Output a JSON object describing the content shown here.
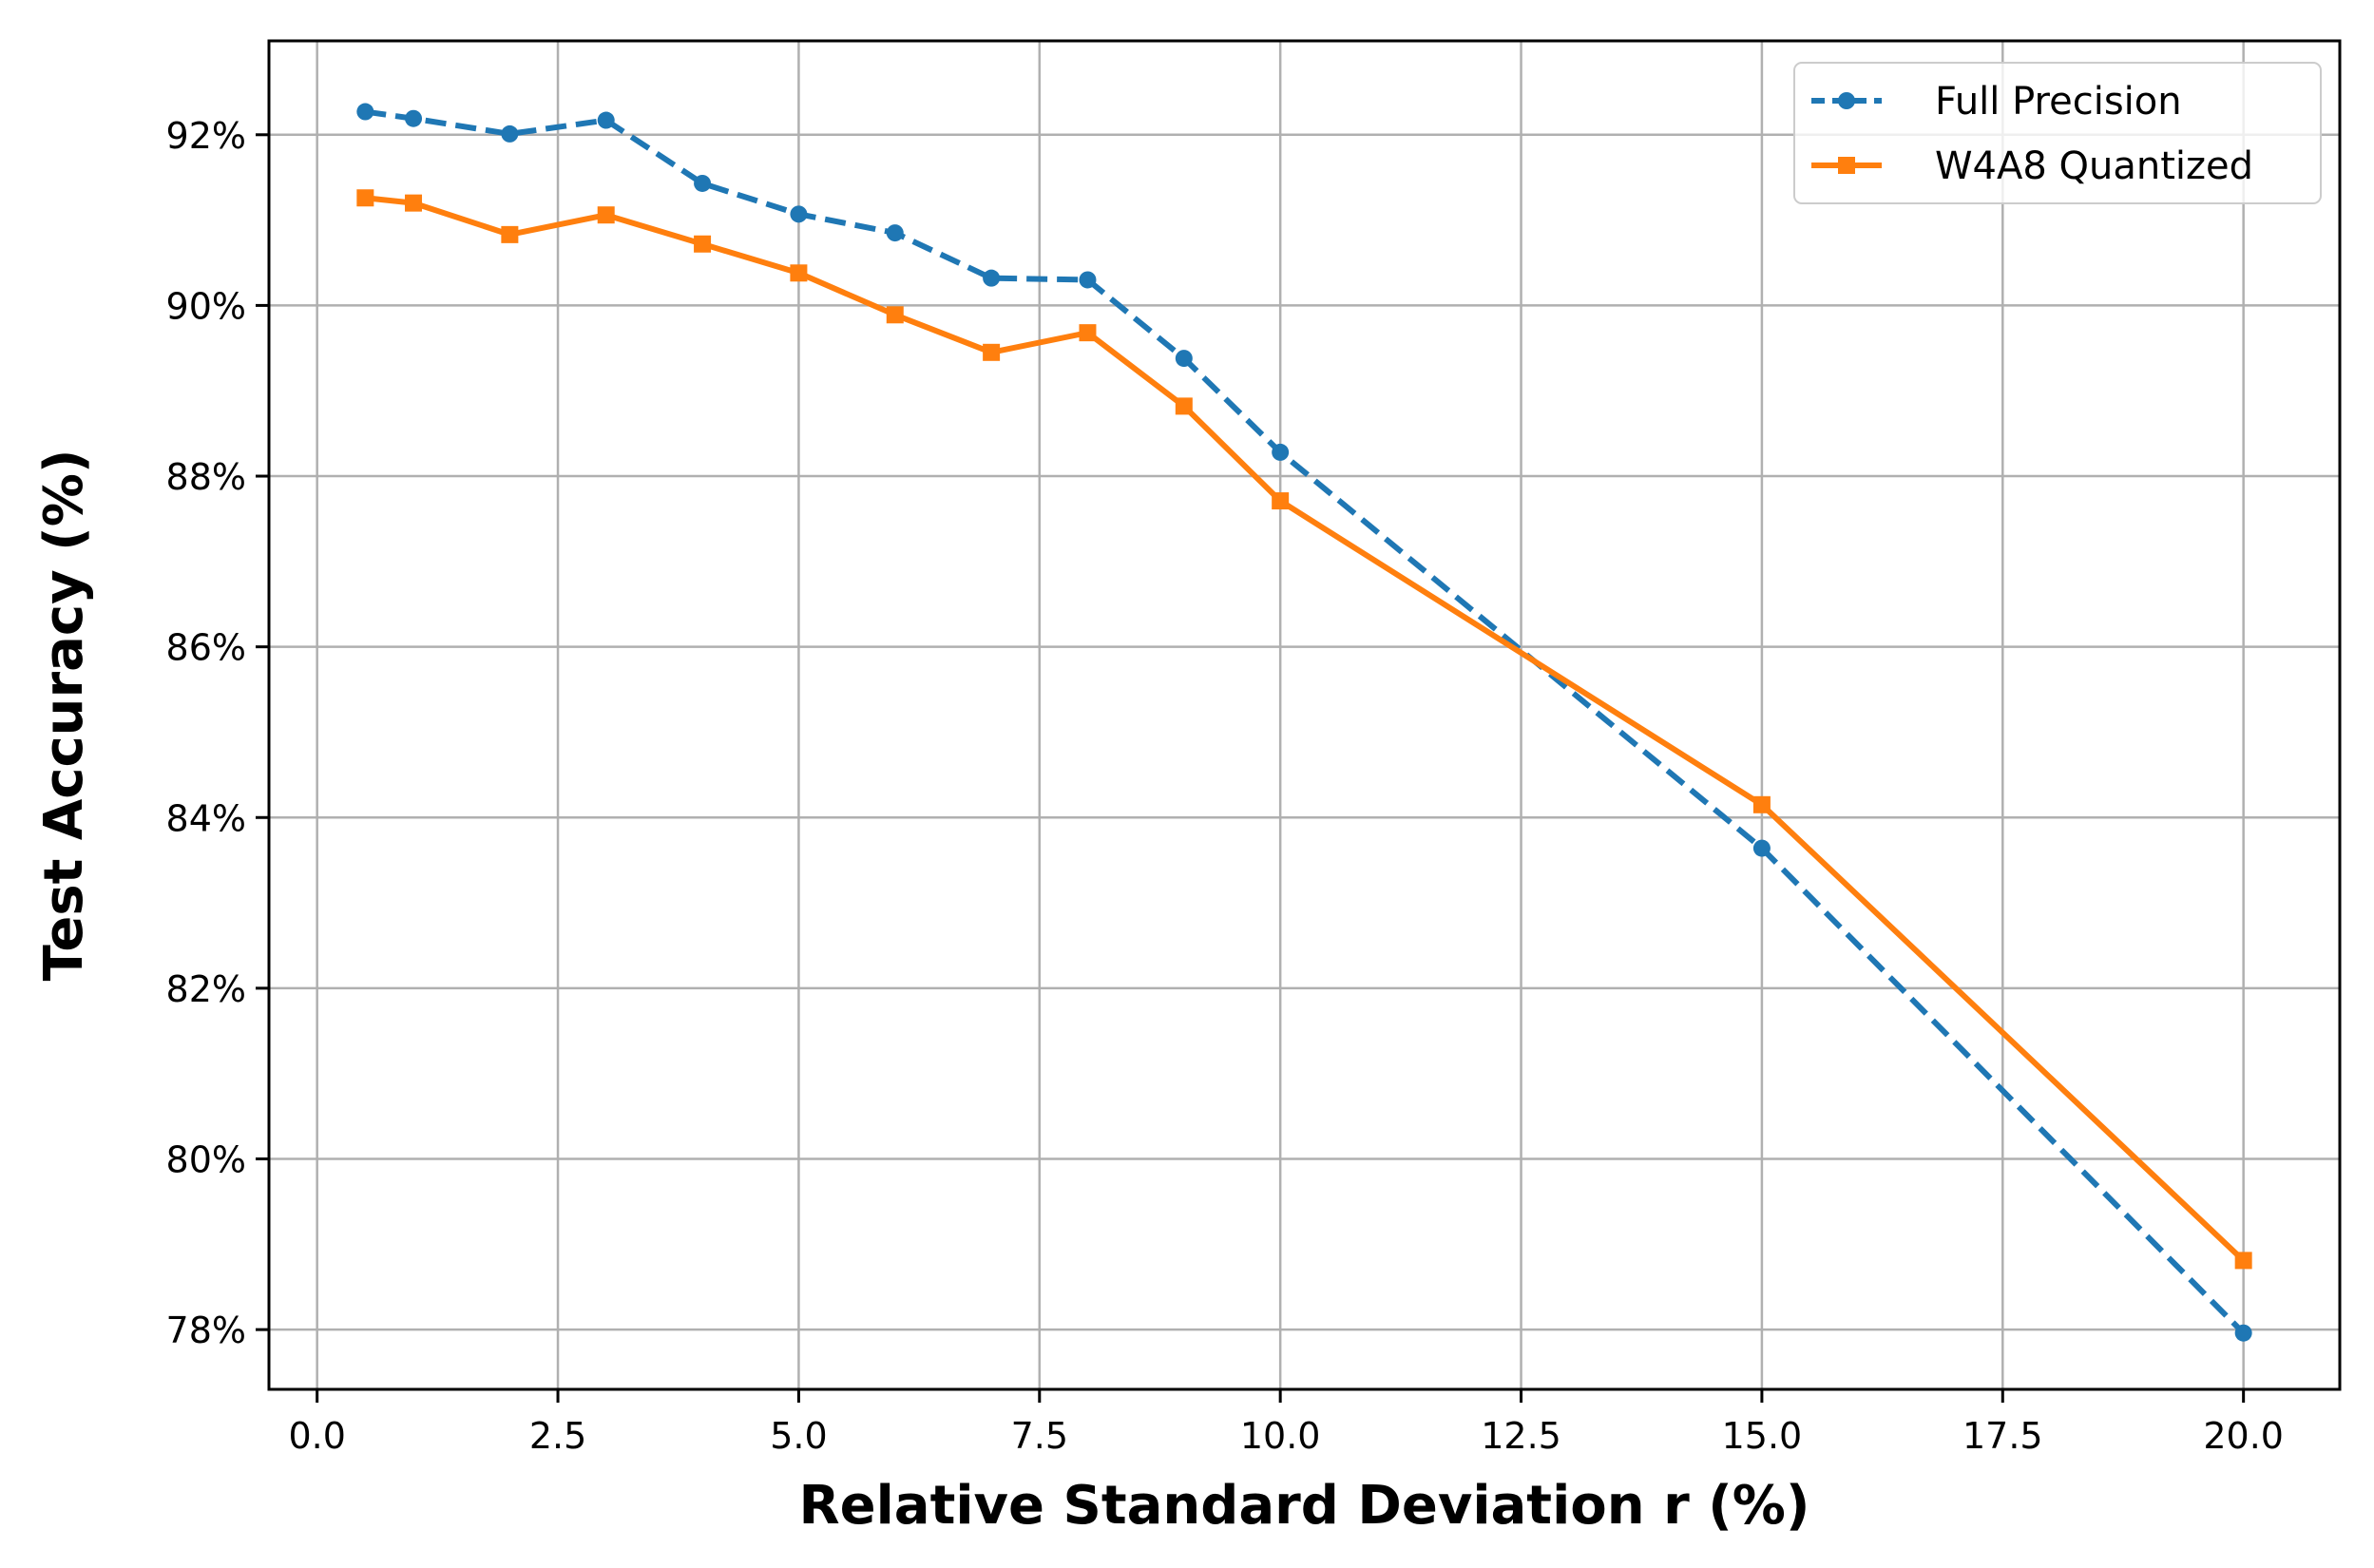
{
  "chart_data": {
    "type": "line",
    "title": "",
    "xlabel": "Relative Standard Deviation r (%)",
    "ylabel": "Test Accuracy (%)",
    "xlim": [
      -0.5,
      21.0
    ],
    "ylim": [
      77.3,
      93.1
    ],
    "grid": true,
    "legend_position": "top-right",
    "xticks": [
      0.0,
      2.5,
      5.0,
      7.5,
      10.0,
      12.5,
      15.0,
      17.5,
      20.0
    ],
    "xtick_labels": [
      "0.0",
      "2.5",
      "5.0",
      "7.5",
      "10.0",
      "12.5",
      "15.0",
      "17.5",
      "20.0"
    ],
    "yticks": [
      78,
      80,
      82,
      84,
      86,
      88,
      90,
      92
    ],
    "ytick_labels": [
      "78%",
      "80%",
      "82%",
      "84%",
      "86%",
      "88%",
      "90%",
      "92%"
    ],
    "x": [
      0.5,
      1,
      2,
      3,
      4,
      5,
      6,
      7,
      8,
      9,
      10,
      15,
      20
    ],
    "series": [
      {
        "name": "Full Precision",
        "color": "#1f77b4",
        "style": "dashed",
        "marker": "circle",
        "values": [
          92.27,
          92.19,
          92.01,
          92.17,
          91.43,
          91.07,
          90.85,
          90.32,
          90.3,
          89.38,
          88.28,
          83.64,
          77.96
        ]
      },
      {
        "name": "W4A8 Quantized",
        "color": "#ff7f0e",
        "style": "solid",
        "marker": "square",
        "values": [
          91.26,
          91.2,
          90.83,
          91.06,
          90.72,
          90.38,
          89.89,
          89.45,
          89.68,
          88.82,
          87.71,
          84.15,
          78.81
        ]
      }
    ]
  }
}
